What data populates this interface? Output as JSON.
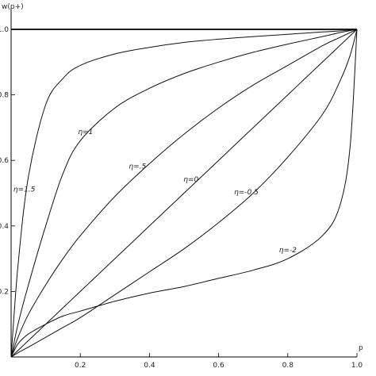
{
  "chart_data": {
    "type": "line",
    "xlabel": "p",
    "ylabel": "w(p+)",
    "xlim": [
      0,
      1
    ],
    "ylim": [
      0,
      1
    ],
    "x_ticks": [
      {
        "value": 0.2,
        "label": "0.2"
      },
      {
        "value": 0.4,
        "label": "0.4"
      },
      {
        "value": 0.6,
        "label": "0.6"
      },
      {
        "value": 0.8,
        "label": "0.8"
      },
      {
        "value": 1.0,
        "label": "1.0"
      }
    ],
    "y_ticks": [
      {
        "value": 0.2,
        "label": "0.2"
      },
      {
        "value": 0.4,
        "label": "0.4"
      },
      {
        "value": 0.6,
        "label": "0.6"
      },
      {
        "value": 0.8,
        "label": "0.8"
      },
      {
        "value": 1.0,
        "label": "1.0"
      }
    ],
    "x": [
      0,
      0.02,
      0.05,
      0.1,
      0.15,
      0.2,
      0.3,
      0.4,
      0.5,
      0.6,
      0.7,
      0.8,
      0.9,
      0.95,
      0.98,
      1.0
    ],
    "series": [
      {
        "label": "η=1.5",
        "values": [
          0,
          0.28,
          0.55,
          0.77,
          0.85,
          0.89,
          0.925,
          0.945,
          0.96,
          0.97,
          0.978,
          0.985,
          0.992,
          0.995,
          0.998,
          1.0
        ]
      },
      {
        "label": "η=1",
        "values": [
          0,
          0.1,
          0.22,
          0.4,
          0.56,
          0.66,
          0.76,
          0.82,
          0.865,
          0.9,
          0.93,
          0.955,
          0.978,
          0.99,
          0.996,
          1.0
        ]
      },
      {
        "label": "η=.5",
        "values": [
          0,
          0.06,
          0.13,
          0.22,
          0.3,
          0.37,
          0.49,
          0.59,
          0.68,
          0.76,
          0.83,
          0.89,
          0.95,
          0.975,
          0.99,
          1.0
        ]
      },
      {
        "label": "η=0",
        "values": [
          0,
          0.02,
          0.05,
          0.1,
          0.15,
          0.2,
          0.3,
          0.4,
          0.5,
          0.6,
          0.7,
          0.8,
          0.9,
          0.95,
          0.98,
          1.0
        ]
      },
      {
        "label": "η=-0.5",
        "values": [
          0,
          0.013,
          0.03,
          0.06,
          0.09,
          0.12,
          0.19,
          0.26,
          0.33,
          0.41,
          0.5,
          0.61,
          0.74,
          0.84,
          0.92,
          1.0
        ]
      },
      {
        "label": "η=-2",
        "values": [
          0,
          0.04,
          0.07,
          0.1,
          0.125,
          0.14,
          0.17,
          0.195,
          0.215,
          0.24,
          0.265,
          0.3,
          0.37,
          0.46,
          0.64,
          1.0
        ]
      }
    ],
    "reference_lines": [
      {
        "y": 1.0
      }
    ],
    "grid": false,
    "legend": "inline labels"
  }
}
